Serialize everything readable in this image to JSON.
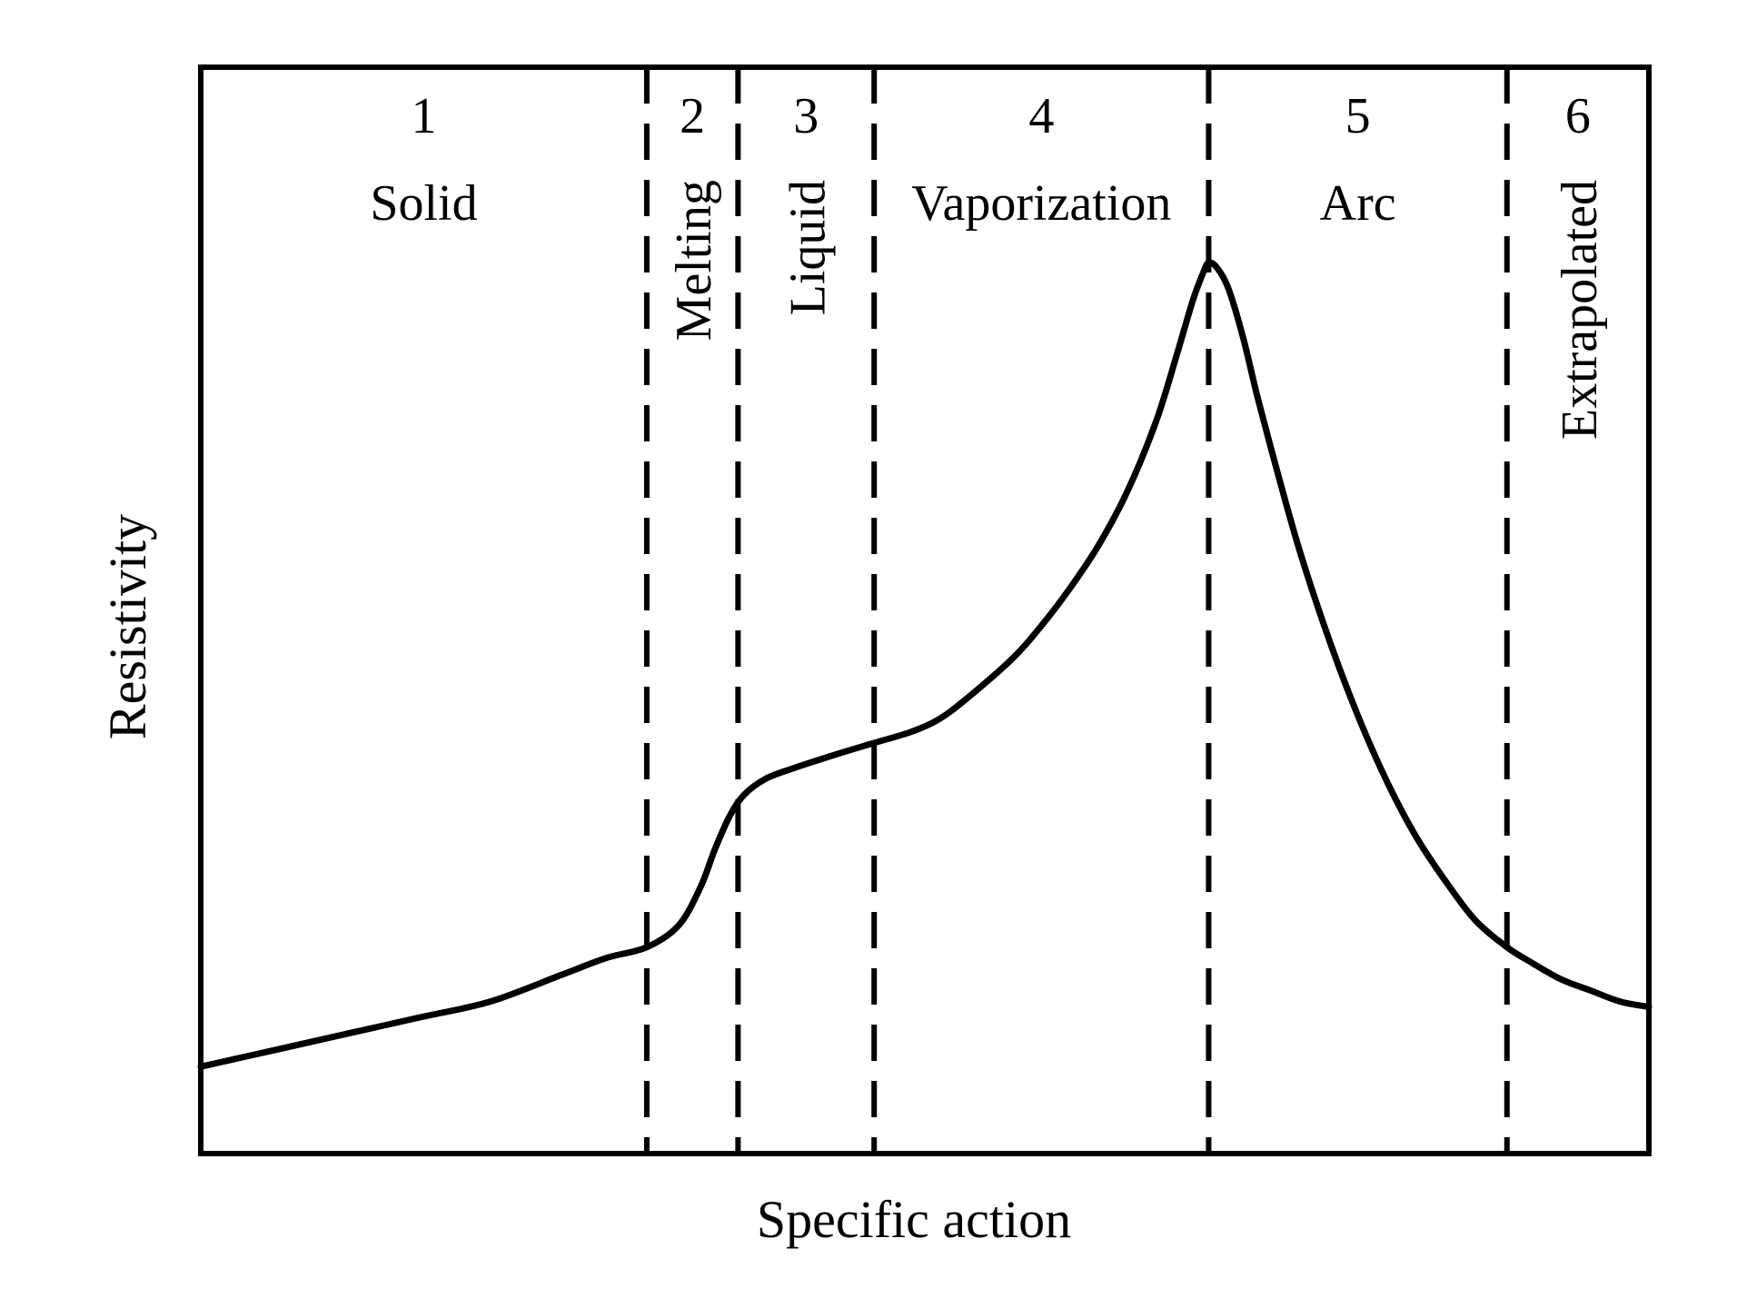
{
  "chart_data": {
    "type": "line",
    "title": "",
    "xlabel": "Specific action",
    "ylabel": "Resistivity",
    "xlim": [
      0,
      100
    ],
    "ylim": [
      0,
      100
    ],
    "grid": false,
    "legend": "none",
    "region_boundaries": [
      30.8,
      37.1,
      46.5,
      69.6,
      90.2
    ],
    "regions": [
      {
        "number": "1",
        "label": "Solid",
        "orientation": "horizontal"
      },
      {
        "number": "2",
        "label": "Melting",
        "orientation": "vertical"
      },
      {
        "number": "3",
        "label": "Liquid",
        "orientation": "vertical"
      },
      {
        "number": "4",
        "label": "Vaporization",
        "orientation": "horizontal"
      },
      {
        "number": "5",
        "label": "Arc",
        "orientation": "horizontal"
      },
      {
        "number": "6",
        "label": "Extrapolated",
        "orientation": "vertical"
      }
    ],
    "series": [
      {
        "values": [
          [
            0,
            8
          ],
          [
            5,
            9.5
          ],
          [
            10,
            11
          ],
          [
            15,
            12.5
          ],
          [
            20,
            14
          ],
          [
            25,
            16.5
          ],
          [
            28,
            18
          ],
          [
            30.8,
            19
          ],
          [
            33,
            21
          ],
          [
            34.5,
            24.5
          ],
          [
            35.5,
            28
          ],
          [
            36.5,
            31
          ],
          [
            37.5,
            33
          ],
          [
            39,
            34.5
          ],
          [
            41,
            35.5
          ],
          [
            44,
            36.8
          ],
          [
            46.5,
            37.8
          ],
          [
            49,
            38.8
          ],
          [
            51,
            40
          ],
          [
            53,
            42
          ],
          [
            56,
            45.5
          ],
          [
            58,
            48.5
          ],
          [
            60,
            52
          ],
          [
            62,
            56
          ],
          [
            64,
            61
          ],
          [
            66,
            67.5
          ],
          [
            67.5,
            74
          ],
          [
            68.5,
            78.5
          ],
          [
            69.2,
            81
          ],
          [
            69.6,
            82
          ],
          [
            70.2,
            81.5
          ],
          [
            71,
            79.5
          ],
          [
            72,
            75
          ],
          [
            73,
            69.5
          ],
          [
            74.5,
            62
          ],
          [
            76,
            55
          ],
          [
            78,
            47
          ],
          [
            80,
            40
          ],
          [
            82,
            34
          ],
          [
            84,
            29
          ],
          [
            86,
            25
          ],
          [
            88,
            21.5
          ],
          [
            90.2,
            19
          ],
          [
            92,
            17.5
          ],
          [
            94,
            16
          ],
          [
            96,
            15
          ],
          [
            98,
            14
          ],
          [
            100,
            13.5
          ]
        ]
      }
    ]
  }
}
